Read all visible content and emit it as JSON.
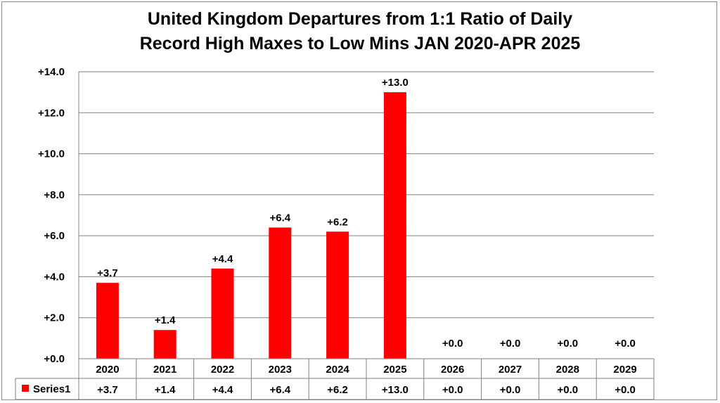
{
  "chart_data": {
    "type": "bar",
    "title_lines": [
      "United Kingdom Departures from 1:1 Ratio of Daily",
      "Record High Maxes to  Low Mins JAN 2020-APR 2025"
    ],
    "categories": [
      "2020",
      "2021",
      "2022",
      "2023",
      "2024",
      "2025",
      "2026",
      "2027",
      "2028",
      "2029"
    ],
    "series": [
      {
        "name": "Series1",
        "color": "#ff0000",
        "values": [
          3.7,
          1.4,
          4.4,
          6.4,
          6.2,
          13.0,
          0.0,
          0.0,
          0.0,
          0.0
        ],
        "labels": [
          "+3.7",
          "+1.4",
          "+4.4",
          "+6.4",
          "+6.2",
          "+13.0",
          "+0.0",
          "+0.0",
          "+0.0",
          "+0.0"
        ]
      }
    ],
    "ylim": [
      0,
      14
    ],
    "yticks": [
      0,
      2,
      4,
      6,
      8,
      10,
      12,
      14
    ],
    "ytick_labels": [
      "+0.0",
      "+2.0",
      "+4.0",
      "+6.0",
      "+8.0",
      "+10.0",
      "+12.0",
      "+14.0"
    ],
    "grid": true,
    "legend": "data-table",
    "gridline_color": "#808080"
  }
}
